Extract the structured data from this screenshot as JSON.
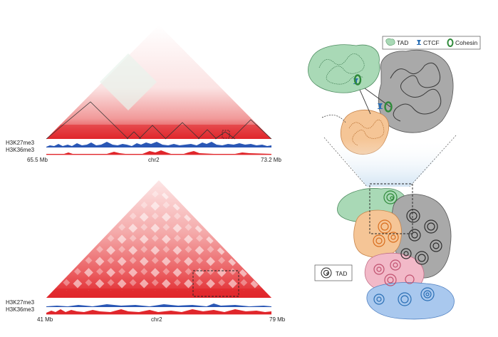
{
  "top_panel": {
    "tracks": [
      "H3K27me3",
      "H3K36me3"
    ],
    "axis": {
      "left": "65.5 Mb",
      "center": "chr2",
      "right": "73.2 Mb"
    }
  },
  "bottom_panel": {
    "tracks": [
      "H3K27me3",
      "H3K36me3"
    ],
    "axis": {
      "left": "41 Mb",
      "center": "chr2",
      "right": "79 Mb"
    }
  },
  "legend_top": {
    "tad": "TAD",
    "ctcf": "CTCF",
    "cohesin": "Cohesin"
  },
  "legend_bottom": {
    "tad": "TAD"
  },
  "colors": {
    "hic_red": "#e0262b",
    "h3k27me3": "#2a57b5",
    "h3k36me3": "#e0262b",
    "tad_green": "#a9d9b6",
    "tad_orange": "#f5c596",
    "tad_grey": "#a9a9a9",
    "tad_pink": "#f2b9c8",
    "tad_blue": "#a9c8ee",
    "cohesin_green": "#2f8a3a",
    "ctcf_blue": "#2a6fb5"
  }
}
